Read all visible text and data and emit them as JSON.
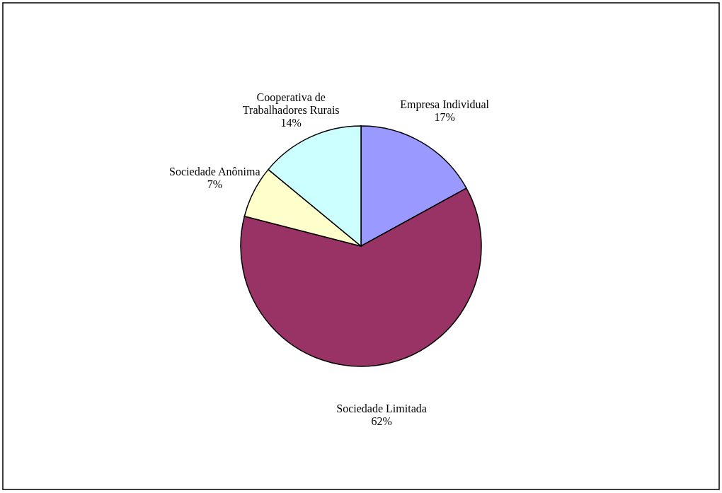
{
  "chart_data": {
    "type": "pie",
    "categories": [
      "Empresa Individual",
      "Sociedade Limitada",
      "Sociedade Anônima",
      "Cooperativa de Trabalhadores Rurais"
    ],
    "values": [
      17,
      62,
      7,
      14
    ],
    "value_labels": [
      "17%",
      "62%",
      "7%",
      "14%"
    ],
    "colors": [
      "#9999ff",
      "#993366",
      "#ffffcc",
      "#ccffff"
    ],
    "legend": false
  }
}
